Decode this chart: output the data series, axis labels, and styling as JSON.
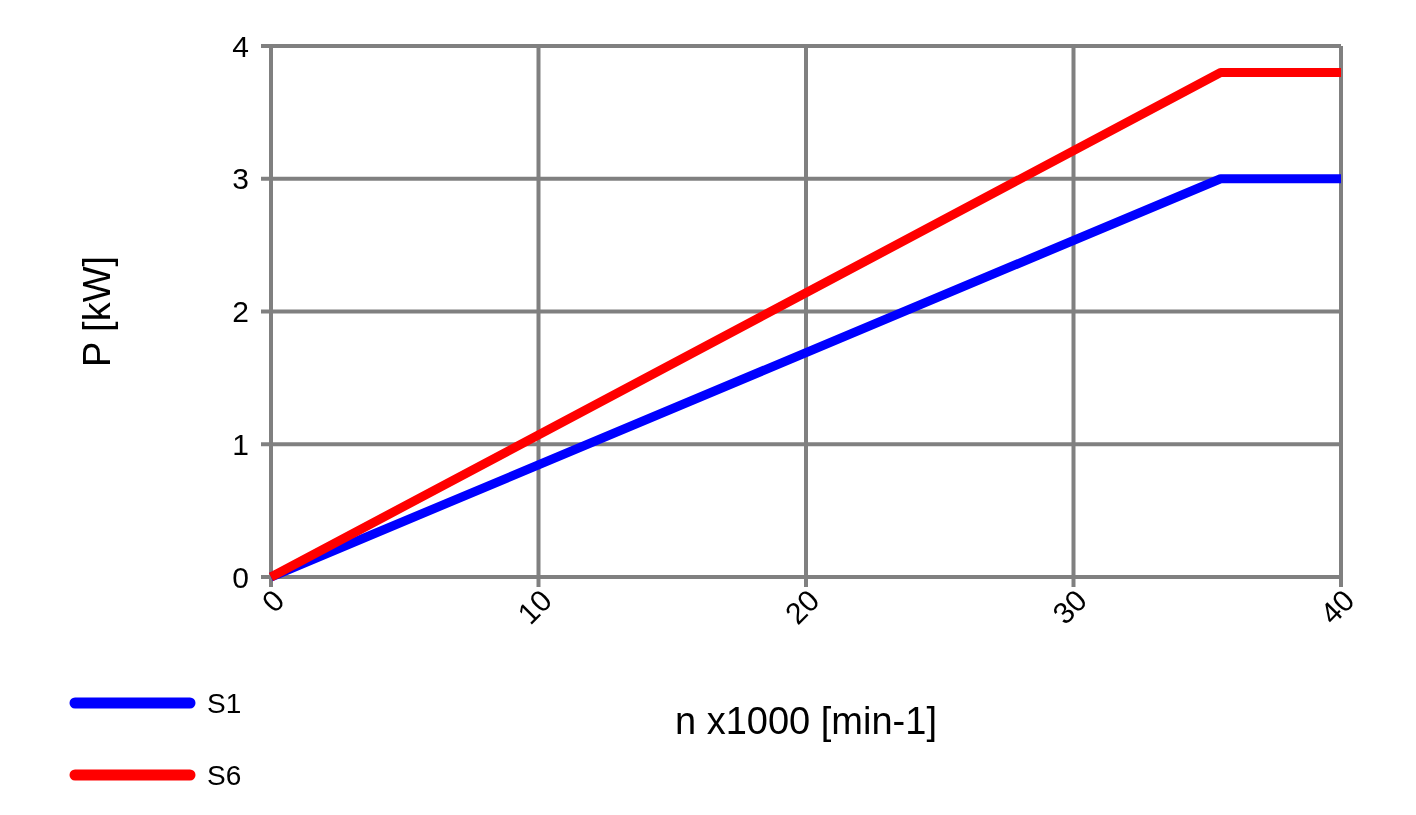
{
  "chart_data": {
    "type": "line",
    "xlabel": "n x1000 [min-1]",
    "ylabel": "P [kW]",
    "xlim": [
      0,
      40
    ],
    "ylim": [
      0,
      4
    ],
    "xticks": [
      0,
      10,
      20,
      30,
      40
    ],
    "yticks": [
      0,
      1,
      2,
      3,
      4
    ],
    "grid": true,
    "legend": "bottom left",
    "series": [
      {
        "name": "S1",
        "color": "#0000ff",
        "x": [
          0,
          35.5,
          40
        ],
        "values": [
          0,
          3,
          3
        ]
      },
      {
        "name": "S6",
        "color": "#ff0000",
        "x": [
          0,
          35.5,
          40
        ],
        "values": [
          0,
          3.8,
          3.8
        ]
      }
    ]
  }
}
